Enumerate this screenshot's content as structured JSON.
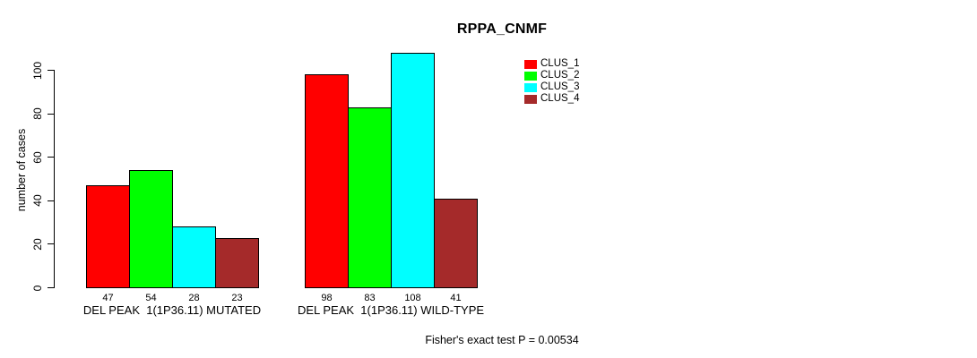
{
  "title": "RPPA_CNMF",
  "ylabel": "number of cases",
  "footer": "Fisher's exact test P = 0.00534",
  "legend": {
    "items": [
      {
        "label": "CLUS_1",
        "color": "#ff0000"
      },
      {
        "label": "CLUS_2",
        "color": "#00ff00"
      },
      {
        "label": "CLUS_3",
        "color": "#00ffff"
      },
      {
        "label": "CLUS_4",
        "color": "#a52a2a"
      }
    ]
  },
  "chart_data": {
    "type": "bar",
    "title": "RPPA_CNMF",
    "xlabel": "",
    "ylabel": "number of cases",
    "ylim": [
      0,
      100
    ],
    "yticks": [
      0,
      20,
      40,
      60,
      80,
      100
    ],
    "grid": false,
    "legend_position": "top-right",
    "categories": [
      "DEL PEAK  1(1P36.11) MUTATED",
      "DEL PEAK  1(1P36.11) WILD-TYPE"
    ],
    "series": [
      {
        "name": "CLUS_1",
        "color": "#ff0000",
        "values": [
          47,
          98
        ]
      },
      {
        "name": "CLUS_2",
        "color": "#00ff00",
        "values": [
          54,
          83
        ]
      },
      {
        "name": "CLUS_3",
        "color": "#00ffff",
        "values": [
          28,
          108
        ]
      },
      {
        "name": "CLUS_4",
        "color": "#a52a2a",
        "values": [
          23,
          41
        ]
      }
    ],
    "bar_value_labels": [
      [
        47,
        54,
        28,
        23
      ],
      [
        98,
        83,
        108,
        41
      ]
    ],
    "annotation": "Fisher's exact test P = 0.00534"
  }
}
